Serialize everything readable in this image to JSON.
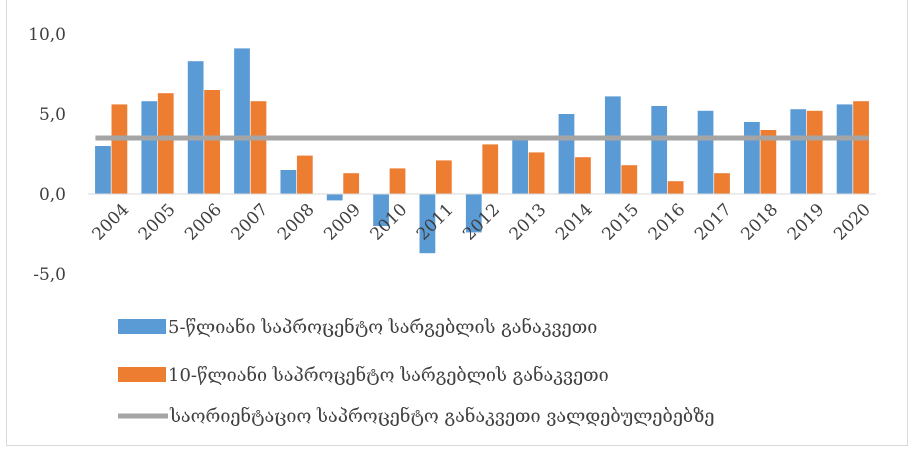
{
  "chart_data": {
    "type": "bar",
    "title": "",
    "xlabel": "",
    "ylabel": "",
    "categories": [
      "2004",
      "2005",
      "2006",
      "2007",
      "2008",
      "2009",
      "2010",
      "2011",
      "2012",
      "2013",
      "2014",
      "2015",
      "2016",
      "2017",
      "2018",
      "2019",
      "2020"
    ],
    "series": [
      {
        "name": "5-წლიანი საპროცენტო სარგებლის განაკვეთი",
        "color": "#5b9bd5",
        "values": [
          3.0,
          5.8,
          8.3,
          9.1,
          1.5,
          -0.4,
          -2.0,
          -3.7,
          -2.4,
          3.6,
          5.0,
          6.1,
          5.5,
          5.2,
          4.5,
          5.3,
          5.6
        ]
      },
      {
        "name": "10-წლიანი საპროცენტო სარგებლის განაკვეთი",
        "color": "#ed7d31",
        "values": [
          5.6,
          6.3,
          6.5,
          5.8,
          2.4,
          1.3,
          1.6,
          2.1,
          3.1,
          2.6,
          2.3,
          1.8,
          0.8,
          1.3,
          4.0,
          5.2,
          5.8
        ]
      }
    ],
    "reference_line": {
      "name": "საორიენტაციო საპროცენტო განაკვეთი ვალდებულებებზე",
      "color": "#a5a5a5",
      "value": 3.5
    },
    "ylim": [
      -5,
      10
    ],
    "yticks": [
      "10,0",
      "5,0",
      "0,0",
      "-5,0"
    ],
    "ytick_values": [
      10,
      5,
      0,
      -5
    ],
    "grid": false,
    "legend": "bottom-left"
  }
}
